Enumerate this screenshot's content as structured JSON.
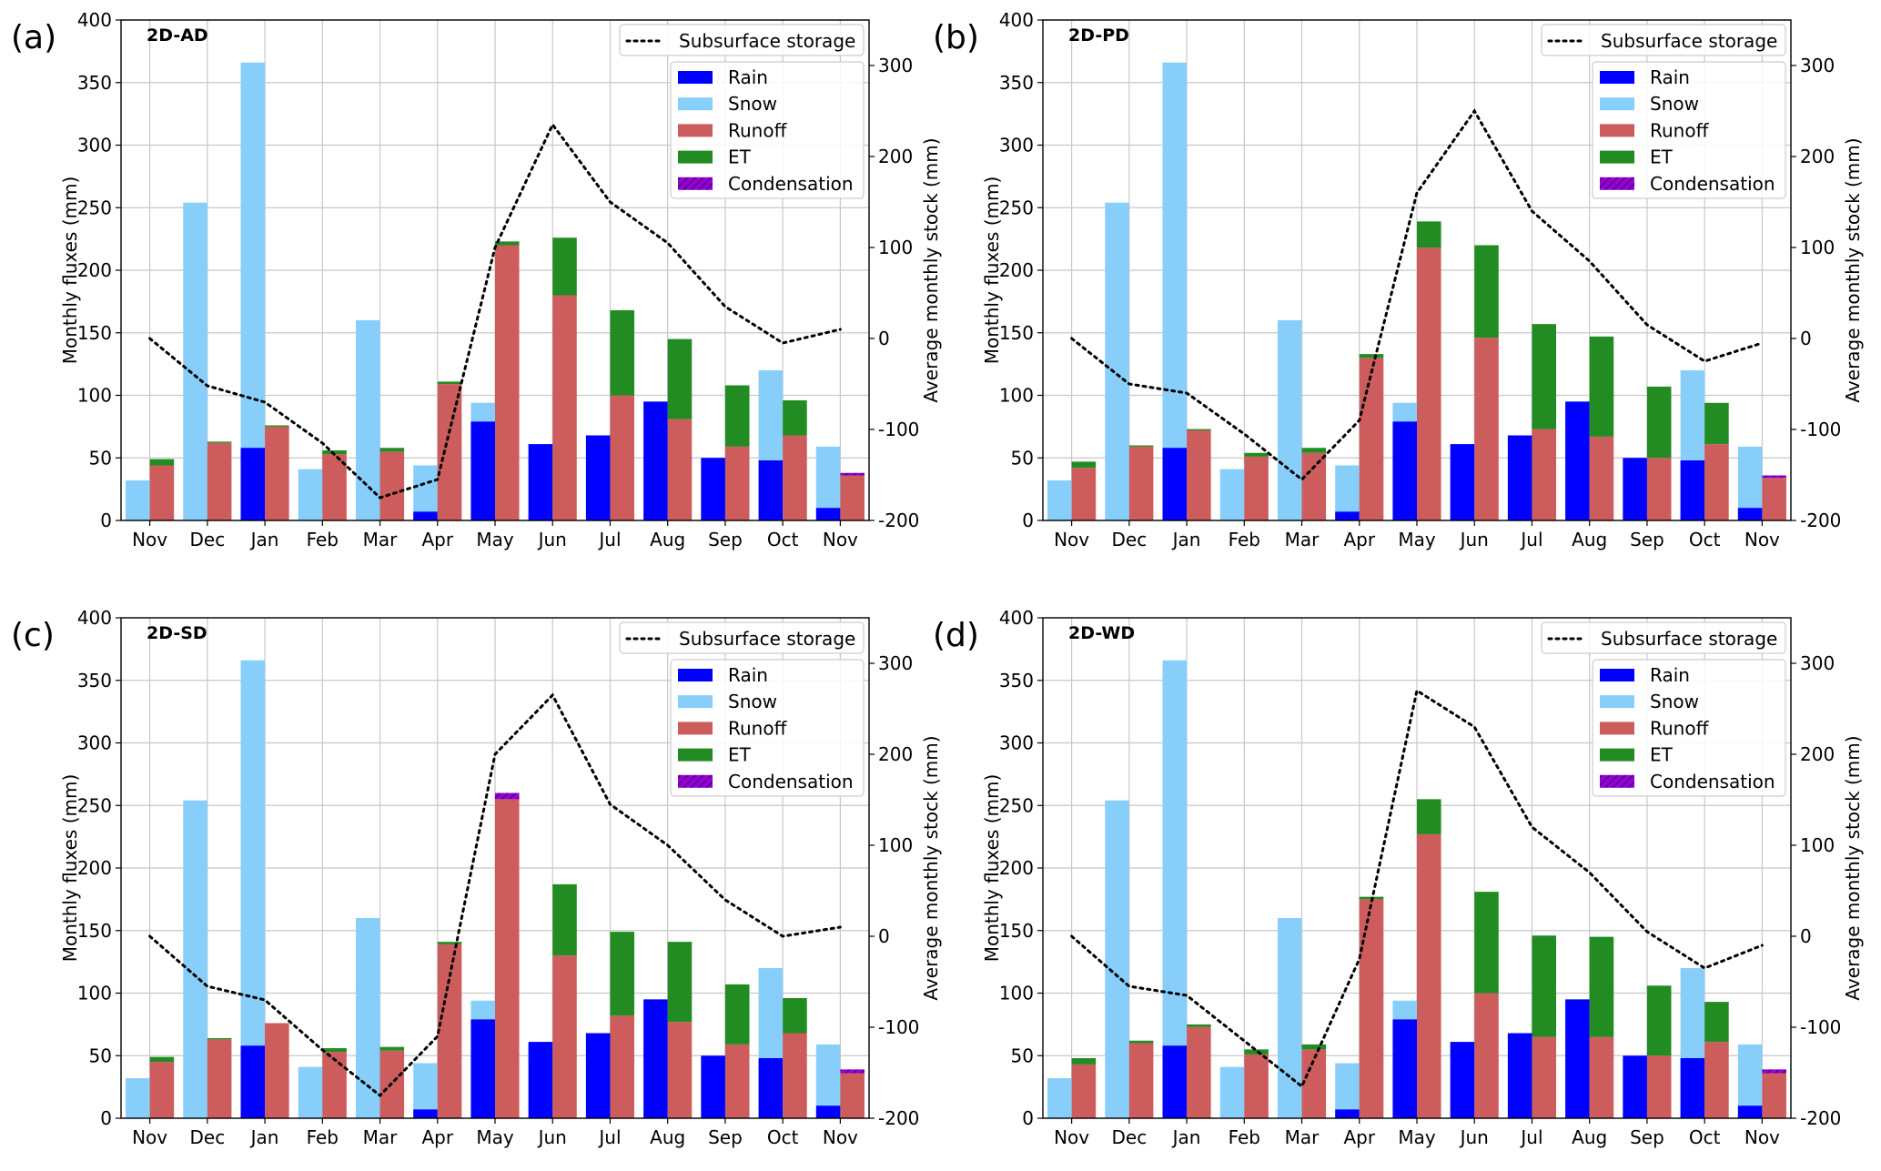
{
  "colors": {
    "rain": "#0000ff",
    "snow": "#87cefa",
    "runoff": "#cd5c5c",
    "et": "#228b22",
    "condensation": "#9400d3",
    "storage": "#000000",
    "grid": "#c8c8c8"
  },
  "chart_data": [
    {
      "type": "bar",
      "panel_label": "(a)",
      "title": "2D-AD",
      "ylabel": "Monthly fluxes (mm)",
      "y2label": "Average monthly stock (mm)",
      "ylim": [
        0,
        400
      ],
      "yticks": [
        0,
        50,
        100,
        150,
        200,
        250,
        300,
        350,
        400
      ],
      "y2lim": [
        -200,
        350
      ],
      "y2ticks": [
        -200,
        -100,
        0,
        100,
        200,
        300
      ],
      "categories": [
        "Nov",
        "Dec",
        "Jan",
        "Feb",
        "Mar",
        "Apr",
        "May",
        "Jun",
        "Jul",
        "Aug",
        "Sep",
        "Oct",
        "Nov"
      ],
      "legend": [
        "Subsurface storage",
        "Rain",
        "Snow",
        "Runoff",
        "ET",
        "Condensation"
      ],
      "series": [
        {
          "name": "Rain",
          "values": [
            0,
            0,
            58,
            0,
            0,
            7,
            79,
            61,
            68,
            95,
            50,
            48,
            10
          ]
        },
        {
          "name": "Snow",
          "values": [
            32,
            254,
            366,
            41,
            160,
            44,
            94,
            61,
            68,
            95,
            50,
            120,
            59
          ]
        },
        {
          "name": "Runoff",
          "values": [
            44,
            62,
            75,
            53,
            55,
            109,
            220,
            180,
            100,
            81,
            59,
            68,
            36
          ]
        },
        {
          "name": "ET",
          "values": [
            5,
            1,
            1,
            3,
            3,
            2,
            3,
            46,
            68,
            64,
            49,
            28,
            0
          ]
        },
        {
          "name": "Condensation",
          "values": [
            0,
            0,
            0,
            0,
            0,
            0,
            0,
            0,
            0,
            0,
            0,
            0,
            2
          ]
        },
        {
          "name": "Subsurface storage",
          "values": [
            0,
            -52,
            -70,
            -115,
            -175,
            -155,
            100,
            235,
            150,
            105,
            35,
            -5,
            10
          ]
        }
      ]
    },
    {
      "type": "bar",
      "panel_label": "(b)",
      "title": "2D-PD",
      "ylabel": "Monthly fluxes (mm)",
      "y2label": "Average monthly stock (mm)",
      "ylim": [
        0,
        400
      ],
      "yticks": [
        0,
        50,
        100,
        150,
        200,
        250,
        300,
        350,
        400
      ],
      "y2lim": [
        -200,
        350
      ],
      "y2ticks": [
        -200,
        -100,
        0,
        100,
        200,
        300
      ],
      "categories": [
        "Nov",
        "Dec",
        "Jan",
        "Feb",
        "Mar",
        "Apr",
        "May",
        "Jun",
        "Jul",
        "Aug",
        "Sep",
        "Oct",
        "Nov"
      ],
      "legend": [
        "Subsurface storage",
        "Rain",
        "Snow",
        "Runoff",
        "ET",
        "Condensation"
      ],
      "series": [
        {
          "name": "Rain",
          "values": [
            0,
            0,
            58,
            0,
            0,
            7,
            79,
            61,
            68,
            95,
            50,
            48,
            10
          ]
        },
        {
          "name": "Snow",
          "values": [
            32,
            254,
            366,
            41,
            160,
            44,
            94,
            61,
            68,
            95,
            50,
            120,
            59
          ]
        },
        {
          "name": "Runoff",
          "values": [
            42,
            59,
            72,
            51,
            54,
            130,
            218,
            146,
            73,
            67,
            50,
            61,
            34
          ]
        },
        {
          "name": "ET",
          "values": [
            5,
            1,
            1,
            3,
            4,
            3,
            21,
            74,
            84,
            80,
            57,
            33,
            0
          ]
        },
        {
          "name": "Condensation",
          "values": [
            0,
            0,
            0,
            0,
            0,
            0,
            0,
            0,
            0,
            0,
            0,
            0,
            2
          ]
        },
        {
          "name": "Subsurface storage",
          "values": [
            0,
            -50,
            -60,
            -105,
            -155,
            -90,
            160,
            250,
            140,
            85,
            15,
            -25,
            -5
          ]
        }
      ]
    },
    {
      "type": "bar",
      "panel_label": "(c)",
      "title": "2D-SD",
      "ylabel": "Monthly fluxes (mm)",
      "y2label": "Average monthly stock (mm)",
      "ylim": [
        0,
        400
      ],
      "yticks": [
        0,
        50,
        100,
        150,
        200,
        250,
        300,
        350,
        400
      ],
      "y2lim": [
        -200,
        350
      ],
      "y2ticks": [
        -200,
        -100,
        0,
        100,
        200,
        300
      ],
      "categories": [
        "Nov",
        "Dec",
        "Jan",
        "Feb",
        "Mar",
        "Apr",
        "May",
        "Jun",
        "Jul",
        "Aug",
        "Sep",
        "Oct",
        "Nov"
      ],
      "legend": [
        "Subsurface storage",
        "Rain",
        "Snow",
        "Runoff",
        "ET",
        "Condensation"
      ],
      "series": [
        {
          "name": "Rain",
          "values": [
            0,
            0,
            58,
            0,
            0,
            7,
            79,
            61,
            68,
            95,
            50,
            48,
            10
          ]
        },
        {
          "name": "Snow",
          "values": [
            32,
            254,
            366,
            41,
            160,
            44,
            94,
            61,
            68,
            95,
            50,
            120,
            59
          ]
        },
        {
          "name": "Runoff",
          "values": [
            45,
            63,
            76,
            53,
            54,
            139,
            255,
            130,
            82,
            77,
            59,
            68,
            36
          ]
        },
        {
          "name": "ET",
          "values": [
            4,
            1,
            0,
            3,
            3,
            2,
            0,
            57,
            67,
            64,
            48,
            28,
            0
          ]
        },
        {
          "name": "Condensation",
          "values": [
            0,
            0,
            0,
            0,
            0,
            0,
            5,
            0,
            0,
            0,
            0,
            0,
            3
          ]
        },
        {
          "name": "Subsurface storage",
          "values": [
            0,
            -55,
            -70,
            -125,
            -175,
            -110,
            200,
            265,
            145,
            100,
            40,
            0,
            10
          ]
        }
      ]
    },
    {
      "type": "bar",
      "panel_label": "(d)",
      "title": "2D-WD",
      "ylabel": "Monthly fluxes (mm)",
      "y2label": "Average monthly stock (mm)",
      "ylim": [
        0,
        400
      ],
      "yticks": [
        0,
        50,
        100,
        150,
        200,
        250,
        300,
        350,
        400
      ],
      "y2lim": [
        -200,
        350
      ],
      "y2ticks": [
        -200,
        -100,
        0,
        100,
        200,
        300
      ],
      "categories": [
        "Nov",
        "Dec",
        "Jan",
        "Feb",
        "Mar",
        "Apr",
        "May",
        "Jun",
        "Jul",
        "Aug",
        "Sep",
        "Oct",
        "Nov"
      ],
      "legend": [
        "Subsurface storage",
        "Rain",
        "Snow",
        "Runoff",
        "ET",
        "Condensation"
      ],
      "series": [
        {
          "name": "Rain",
          "values": [
            0,
            0,
            58,
            0,
            0,
            7,
            79,
            61,
            68,
            95,
            50,
            48,
            10
          ]
        },
        {
          "name": "Snow",
          "values": [
            32,
            254,
            366,
            41,
            160,
            44,
            94,
            61,
            68,
            95,
            50,
            120,
            59
          ]
        },
        {
          "name": "Runoff",
          "values": [
            43,
            60,
            73,
            51,
            55,
            175,
            227,
            100,
            65,
            65,
            50,
            61,
            36
          ]
        },
        {
          "name": "ET",
          "values": [
            5,
            2,
            2,
            4,
            4,
            2,
            28,
            81,
            81,
            80,
            56,
            32,
            0
          ]
        },
        {
          "name": "Condensation",
          "values": [
            0,
            0,
            0,
            0,
            0,
            0,
            0,
            0,
            0,
            0,
            0,
            0,
            3
          ]
        },
        {
          "name": "Subsurface storage",
          "values": [
            0,
            -55,
            -65,
            -115,
            -165,
            -25,
            270,
            230,
            120,
            70,
            5,
            -35,
            -10
          ]
        }
      ]
    }
  ]
}
